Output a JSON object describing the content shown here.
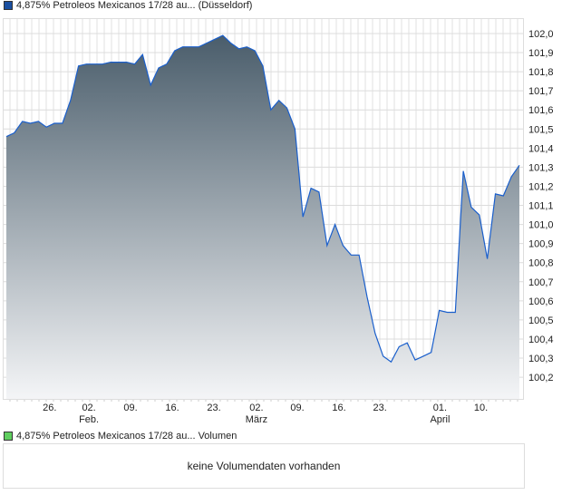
{
  "legend": {
    "price_label": "4,875% Petroleos Mexicanos 17/28 au... (Düsseldorf)",
    "price_color": "#1a4fa0",
    "volume_label": "4,875% Petroleos Mexicanos 17/28 au... Volumen",
    "volume_color": "#5fce5f"
  },
  "volume": {
    "empty_text": "keine Volumendaten vorhanden"
  },
  "chart_data": {
    "type": "area",
    "grid": true,
    "line_color": "#1a5fcc",
    "fill_gradient": [
      "#4a5d6b",
      "#f4f5f7"
    ],
    "ylim": [
      100.1,
      102.07
    ],
    "y_ticks": [
      "100,2",
      "100,3",
      "100,4",
      "100,5",
      "100,6",
      "100,7",
      "100,8",
      "100,9",
      "101,0",
      "101,1",
      "101,2",
      "101,3",
      "101,4",
      "101,5",
      "101,6",
      "101,7",
      "101,8",
      "101,9",
      "102,0"
    ],
    "x_ticks": [
      {
        "label": "26.",
        "sub": "",
        "index": 5.4
      },
      {
        "label": "02.",
        "sub": "Feb.",
        "index": 10.3
      },
      {
        "label": "09.",
        "sub": "",
        "index": 15.5
      },
      {
        "label": "16.",
        "sub": "",
        "index": 20.7
      },
      {
        "label": "23.",
        "sub": "",
        "index": 25.9
      },
      {
        "label": "02.",
        "sub": "März",
        "index": 31.2
      },
      {
        "label": "09.",
        "sub": "",
        "index": 36.3
      },
      {
        "label": "16.",
        "sub": "",
        "index": 41.5
      },
      {
        "label": "23.",
        "sub": "",
        "index": 46.6
      },
      {
        "label": "01.",
        "sub": "April",
        "index": 54.1
      },
      {
        "label": "10.",
        "sub": "",
        "index": 59.2
      }
    ],
    "values": [
      101.46,
      101.48,
      101.54,
      101.53,
      101.54,
      101.51,
      101.53,
      101.53,
      101.65,
      101.83,
      101.84,
      101.84,
      101.84,
      101.85,
      101.85,
      101.85,
      101.84,
      101.89,
      101.73,
      101.82,
      101.84,
      101.91,
      101.93,
      101.93,
      101.93,
      101.95,
      101.97,
      101.99,
      101.95,
      101.92,
      101.93,
      101.91,
      101.83,
      101.6,
      101.65,
      101.61,
      101.5,
      101.04,
      101.19,
      101.17,
      100.89,
      101.0,
      100.89,
      100.84,
      100.84,
      100.62,
      100.43,
      100.31,
      100.28,
      100.36,
      100.38,
      100.29,
      100.31,
      100.33,
      100.55,
      100.54,
      100.54,
      101.28,
      101.09,
      101.05,
      100.82,
      101.16,
      101.15,
      101.25,
      101.31
    ]
  }
}
